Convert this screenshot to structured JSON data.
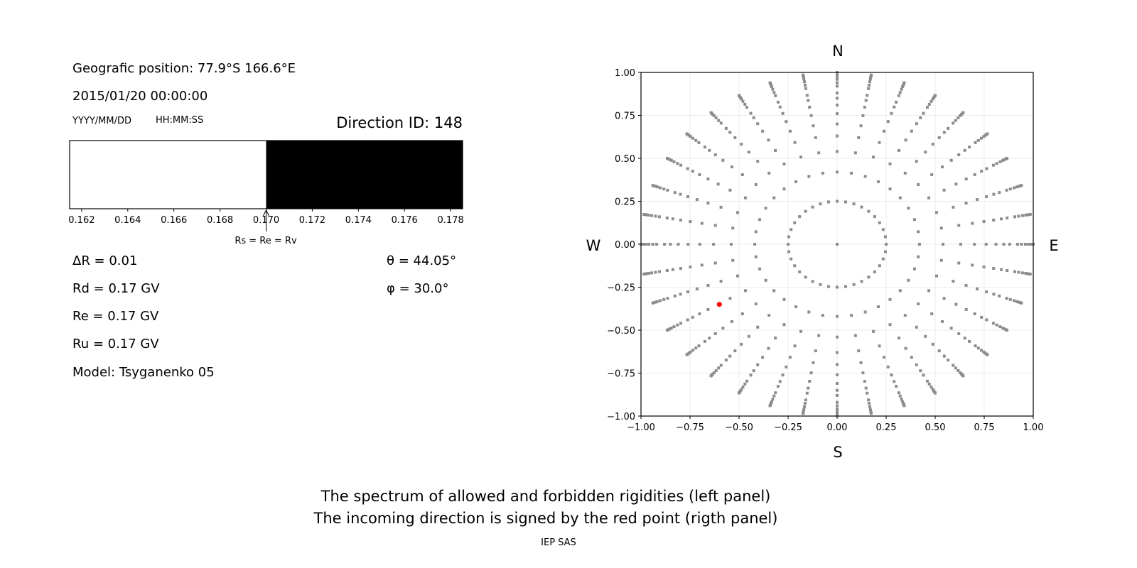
{
  "left_panel": {
    "position_text": "Geografic position: 77.9°S 166.6°E",
    "datetime_text": "2015/01/20 00:00:00",
    "date_format_label": "YYYY/MM/DD",
    "time_format_label": "HH:MM:SS",
    "direction_id_text": "Direction ID: 148",
    "delta_r_text": "ΔR = 0.01",
    "rd_text": "Rd = 0.17 GV",
    "re_text": "Re = 0.17 GV",
    "ru_text": "Ru = 0.17 GV",
    "model_text": "Model: Tsyganenko 05",
    "theta_text": "θ = 44.05°",
    "phi_text": "φ = 30.0°",
    "arrow_annotation": "Rs = Re = Rv"
  },
  "right_panel": {
    "compass": {
      "north": "N",
      "south": "S",
      "west": "W",
      "east": "E"
    }
  },
  "caption": {
    "line1": "The spectrum of allowed and forbidden rigidities (left panel)",
    "line2": "The incoming direction is signed by the red point (rigth panel)",
    "credit": "IEP SAS"
  },
  "chart_data": [
    {
      "type": "bar",
      "description_role": "rigidity spectrum",
      "xlim": [
        0.16148,
        0.17852
      ],
      "xticks": [
        "0.162",
        "0.164",
        "0.166",
        "0.168",
        "0.170",
        "0.172",
        "0.174",
        "0.176",
        "0.178"
      ],
      "segments": [
        {
          "from": 0.16148,
          "to": 0.17,
          "state": "allowed",
          "color": "#ffffff"
        },
        {
          "from": 0.17,
          "to": 0.17852,
          "state": "forbidden",
          "color": "#000000"
        }
      ],
      "annotation_x": 0.17
    },
    {
      "type": "scatter",
      "xlim": [
        -1,
        1
      ],
      "ylim": [
        -1,
        1
      ],
      "grid": true,
      "xticks": [
        "−1.00",
        "−0.75",
        "−0.50",
        "−0.25",
        "0.00",
        "0.25",
        "0.50",
        "0.75",
        "1.00"
      ],
      "yticks": [
        "−1.00",
        "−0.75",
        "−0.50",
        "−0.25",
        "0.00",
        "0.25",
        "0.50",
        "0.75",
        "1.00"
      ],
      "grid_point_color": "#8c8c8c",
      "grid_azimuth_step_deg": 10,
      "grid_radii": [
        0.25,
        0.42,
        0.54,
        0.63,
        0.7,
        0.76,
        0.81,
        0.85,
        0.88,
        0.92,
        0.94,
        0.96,
        0.976,
        0.986,
        0.995,
        1.0
      ],
      "highlight_point": {
        "x": -0.6,
        "y": -0.35,
        "color": "#ff0000"
      }
    }
  ]
}
